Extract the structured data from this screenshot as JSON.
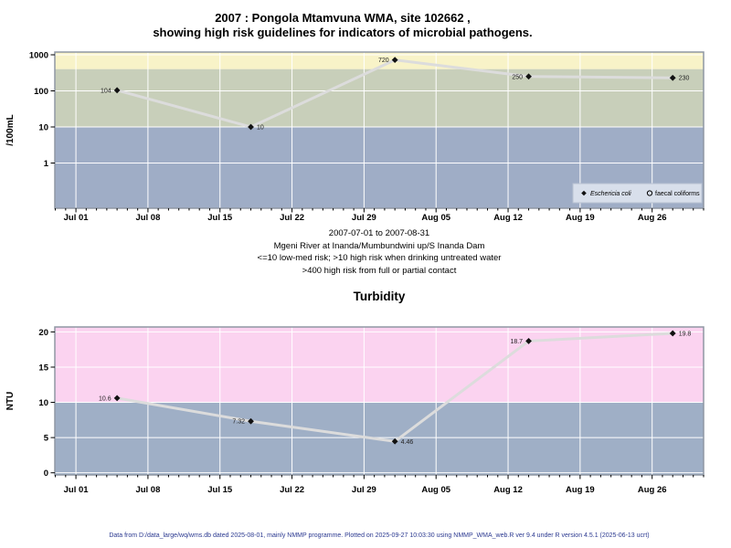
{
  "page": {
    "title_line1": "2007 : Pongola Mtamvuna WMA, site 102662 ,",
    "title_line2": "showing high risk guidelines for indicators of microbial pathogens.",
    "footer": "Data from D:/data_large/wq/wms.db dated 2025-08-01, mainly NMMP programme. Plotted on 2025-09-27 10:03:30 using NMMP_WMA_web.R ver 9.4 under R version 4.5.1 (2025-06-13 ucrt)"
  },
  "subtitle": {
    "line1": "2007-07-01 to 2007-08-31",
    "line2": "Mgeni River at Inanda/Mumbundwini up/S Inanda Dam",
    "line3": "<=10 low-med risk; >10 high risk when drinking untreated water",
    "line4": ">400 high risk from full or partial contact"
  },
  "colors": {
    "band_high_risk_contact": "#f8f3c8",
    "band_mid": "#c8cfba",
    "band_low": "#9fadc6",
    "band_turbidity_high": "#fbd3f0",
    "band_turbidity_low": "#9fafc6",
    "series_line": "#dcdcdc",
    "marker": "#111111",
    "gridline": "#ffffff",
    "frame": "#8f97a3",
    "legend_bg": "#d8dfeb",
    "legend_border": "#b9c2d2",
    "footer_text": "#2b3990"
  },
  "chart_data": [
    {
      "type": "line",
      "title": "",
      "ylabel": "/100mL",
      "yscale": "log",
      "ylim": [
        0.06,
        1190
      ],
      "yticks": [
        1000,
        100,
        10,
        1
      ],
      "xticks": [
        "Jul 01",
        "Jul 08",
        "Jul 15",
        "Jul 22",
        "Jul 29",
        "Aug 05",
        "Aug 12",
        "Aug 19",
        "Aug 26"
      ],
      "xtick_days": [
        0,
        7,
        14,
        21,
        28,
        35,
        42,
        49,
        56
      ],
      "x_range": [
        "2007-07-01",
        "2007-08-31"
      ],
      "grid": true,
      "legend_position": "bottom-right",
      "series": [
        {
          "name": "Eschericia coli",
          "marker": "diamond",
          "dates": [
            "2007-07-05",
            "2007-07-18",
            "2007-08-01",
            "2007-08-14",
            "2007-08-28"
          ],
          "days": [
            4,
            17,
            31,
            44,
            58
          ],
          "values": [
            104,
            10,
            720,
            250,
            230
          ],
          "labels": [
            "104",
            "10",
            "720",
            "250",
            "230"
          ],
          "label_side": [
            "left",
            "right",
            "left",
            "left",
            "right"
          ]
        }
      ],
      "bands": [
        {
          "from": 400,
          "to": null,
          "color_key": "band_high_risk_contact"
        },
        {
          "from": 10,
          "to": 400,
          "color_key": "band_mid"
        },
        {
          "from": null,
          "to": 10,
          "color_key": "band_low"
        }
      ],
      "legend": [
        {
          "marker": "diamond",
          "label": "Eschericia coli",
          "italic": true
        },
        {
          "marker": "circle",
          "label": "faecal coliforms",
          "italic": false
        }
      ]
    },
    {
      "type": "line",
      "title": "Turbidity",
      "ylabel": "NTU",
      "yscale": "linear",
      "ylim": [
        0,
        20
      ],
      "yticks": [
        20,
        15,
        10,
        5,
        0
      ],
      "xticks": [
        "Jul 01",
        "Jul 08",
        "Jul 15",
        "Jul 22",
        "Jul 29",
        "Aug 05",
        "Aug 12",
        "Aug 19",
        "Aug 26"
      ],
      "xtick_days": [
        0,
        7,
        14,
        21,
        28,
        35,
        42,
        49,
        56
      ],
      "x_range": [
        "2007-07-01",
        "2007-08-31"
      ],
      "grid": true,
      "series": [
        {
          "name": "Turbidity",
          "marker": "diamond",
          "dates": [
            "2007-07-05",
            "2007-07-18",
            "2007-08-01",
            "2007-08-14",
            "2007-08-28"
          ],
          "days": [
            4,
            17,
            31,
            44,
            58
          ],
          "values": [
            10.6,
            7.32,
            4.46,
            18.7,
            19.8
          ],
          "labels": [
            "10.6",
            "7.32",
            "4.46",
            "18.7",
            "19.8"
          ],
          "label_side": [
            "left",
            "left",
            "right",
            "left",
            "right"
          ]
        }
      ],
      "bands": [
        {
          "from": 10,
          "to": null,
          "color_key": "band_turbidity_high"
        },
        {
          "from": null,
          "to": 10,
          "color_key": "band_turbidity_low"
        }
      ]
    }
  ]
}
